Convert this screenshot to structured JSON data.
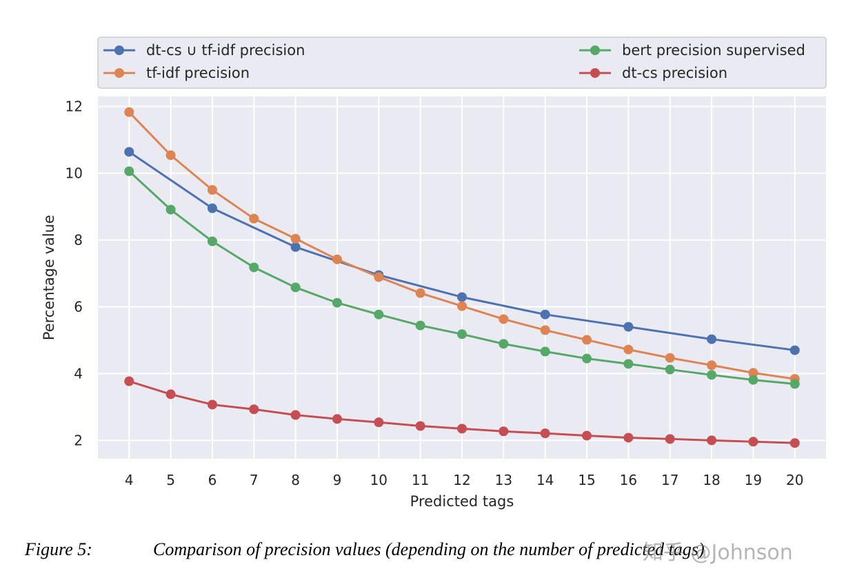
{
  "chart_data": {
    "type": "line",
    "title": "",
    "xlabel": "Predicted tags",
    "ylabel": "Percentage value",
    "xlim": [
      3.25,
      20.75
    ],
    "ylim": [
      1.45,
      12.3
    ],
    "xticks": [
      4,
      5,
      6,
      7,
      8,
      9,
      10,
      11,
      12,
      13,
      14,
      15,
      16,
      17,
      18,
      19,
      20
    ],
    "yticks": [
      2,
      4,
      6,
      8,
      10,
      12
    ],
    "grid": true,
    "legend_position": "top",
    "series": [
      {
        "name": "dt-cs ∪ tf-idf precision",
        "color": "#4c72b0",
        "x": [
          4,
          6,
          8,
          10,
          12,
          14,
          16,
          18,
          20
        ],
        "y": [
          10.64,
          8.95,
          7.79,
          6.95,
          6.29,
          5.77,
          5.4,
          5.03,
          4.7
        ]
      },
      {
        "name": "tf-idf precision",
        "color": "#dd8452",
        "x": [
          4,
          5,
          6,
          7,
          8,
          9,
          10,
          11,
          12,
          13,
          14,
          15,
          16,
          17,
          18,
          19,
          20
        ],
        "y": [
          11.83,
          10.54,
          9.5,
          8.64,
          8.04,
          7.42,
          6.89,
          6.41,
          6.02,
          5.63,
          5.3,
          5.01,
          4.72,
          4.47,
          4.25,
          4.02,
          3.84
        ]
      },
      {
        "name": "bert precision supervised",
        "color": "#55a868",
        "x": [
          4,
          5,
          6,
          7,
          8,
          9,
          10,
          11,
          12,
          13,
          14,
          15,
          16,
          17,
          18,
          19,
          20
        ],
        "y": [
          10.06,
          8.91,
          7.96,
          7.18,
          6.58,
          6.12,
          5.77,
          5.44,
          5.18,
          4.89,
          4.66,
          4.45,
          4.29,
          4.12,
          3.96,
          3.81,
          3.69
        ]
      },
      {
        "name": "dt-cs precision",
        "color": "#c44e52",
        "x": [
          4,
          5,
          6,
          7,
          8,
          9,
          10,
          11,
          12,
          13,
          14,
          15,
          16,
          17,
          18,
          19,
          20
        ],
        "y": [
          3.77,
          3.38,
          3.07,
          2.93,
          2.76,
          2.64,
          2.54,
          2.43,
          2.35,
          2.27,
          2.21,
          2.14,
          2.08,
          2.04,
          2.0,
          1.96,
          1.92
        ]
      }
    ]
  },
  "caption": {
    "label": "Figure 5:",
    "text": "Comparison of precision values (depending on the number of predicted tags)"
  },
  "watermark": "知乎 @Johnson"
}
